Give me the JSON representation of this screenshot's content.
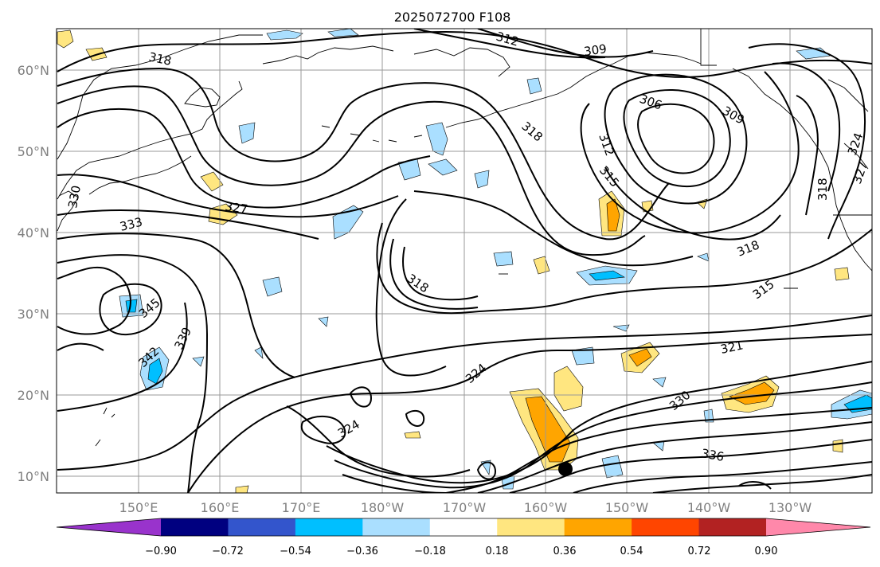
{
  "title": "2025072700 F108",
  "map": {
    "lat_labels": [
      "60°N",
      "50°N",
      "40°N",
      "30°N",
      "20°N",
      "10°N"
    ],
    "lon_labels": [
      "150°E",
      "160°E",
      "170°E",
      "180°W",
      "170°W",
      "160°W",
      "150°W",
      "140°W",
      "130°W"
    ],
    "contour_labels": [
      "318",
      "312",
      "309",
      "306",
      "309",
      "318",
      "312",
      "315",
      "327",
      "333",
      "330",
      "318",
      "318",
      "315",
      "345",
      "339",
      "342",
      "321",
      "324",
      "324",
      "330",
      "336",
      "327",
      "324",
      "318"
    ],
    "marker": {
      "lat": 11,
      "lon": -157.5
    }
  },
  "colorbar": {
    "tick_labels": [
      "−0.90",
      "−0.72",
      "−0.54",
      "−0.36",
      "−0.18",
      "0.18",
      "0.36",
      "0.54",
      "0.72",
      "0.90"
    ],
    "colors": [
      "#9933cc",
      "#000080",
      "#3355cc",
      "#00bfff",
      "#aadfff",
      "#ffffff",
      "#ffe680",
      "#ffa500",
      "#ff4500",
      "#b22222",
      "#ff88aa"
    ]
  },
  "fill_colors": {
    "light_blue": "#aadfff",
    "blue": "#00bfff",
    "light_yellow": "#ffe680",
    "orange": "#ffa500"
  }
}
